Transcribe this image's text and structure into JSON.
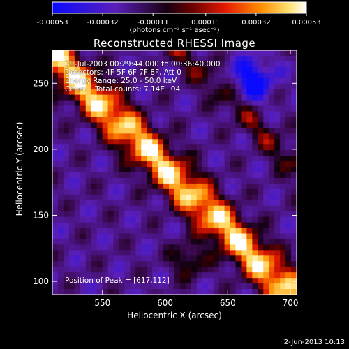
{
  "title": "Reconstructed RHESSI Image",
  "colorbar": {
    "unit_label": "(photons cm⁻² s⁻¹ asec⁻²)",
    "ticks": [
      "-0.00053",
      "-0.00032",
      "-0.00011",
      "0.00011",
      "0.00032",
      "0.00053"
    ],
    "range": [
      -0.00053,
      0.00053
    ]
  },
  "info": {
    "time_range": "29-Jul-2003 00:29:44.000 to 00:36:40.000",
    "detectors": "Detectors: 4F 5F 6F 7F 8F, Att 0",
    "energy": "Energy Range: 25.0 - 50.0 keV",
    "clean": "Clean    Total counts: 7.14E+04",
    "peak": "Position of Peak = [617,112]"
  },
  "footer_date": "2-Jun-2013 10:13",
  "chart_data": {
    "type": "heatmap",
    "title": "Reconstructed RHESSI Image",
    "xlabel": "Heliocentric X (arcsec)",
    "ylabel": "Heliocentric Y (arcsec)",
    "xlim": [
      510,
      705
    ],
    "ylim": [
      90,
      275
    ],
    "xticks": [
      550,
      600,
      650,
      700
    ],
    "yticks": [
      100,
      150,
      200,
      250
    ],
    "zlim": [
      -0.00053,
      0.00053
    ],
    "peak_position": [
      617,
      112
    ],
    "colormap": [
      "#0000ff",
      "#5b22c8",
      "#000000",
      "#7a0000",
      "#e61a00",
      "#ff8c00",
      "#ffd24a",
      "#ffffff"
    ]
  }
}
